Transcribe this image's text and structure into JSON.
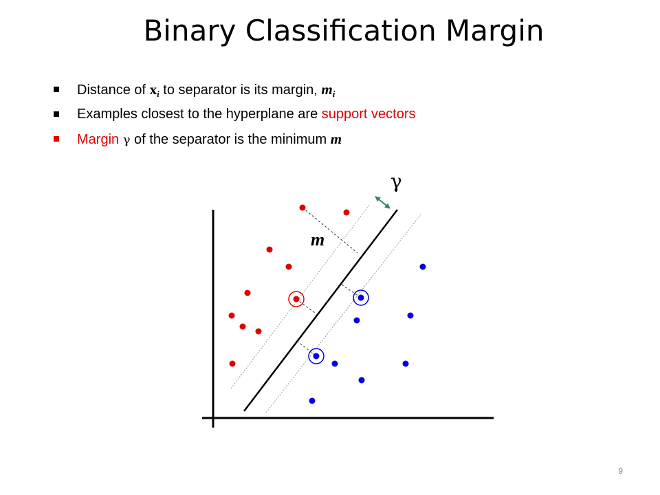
{
  "title": "Binary Classification Margin",
  "bullets": [
    {
      "pre": "Distance of ",
      "var": "x",
      "var_sub": "i",
      "mid": " to separator is its margin, ",
      "m_var": "m",
      "m_sub": "i"
    },
    {
      "pre": "Examples closest to the hyperplane are ",
      "highlight": "support vectors"
    },
    {
      "highlight": "Margin",
      "gamma": "γ",
      "post": " of the separator is the minimum ",
      "m_var": "m"
    }
  ],
  "figure": {
    "gamma_label": "γ",
    "m_label": "m"
  },
  "colors": {
    "red": "#e00000",
    "blue": "#0000e0",
    "green": "#2e8b57"
  },
  "page_number": "9"
}
